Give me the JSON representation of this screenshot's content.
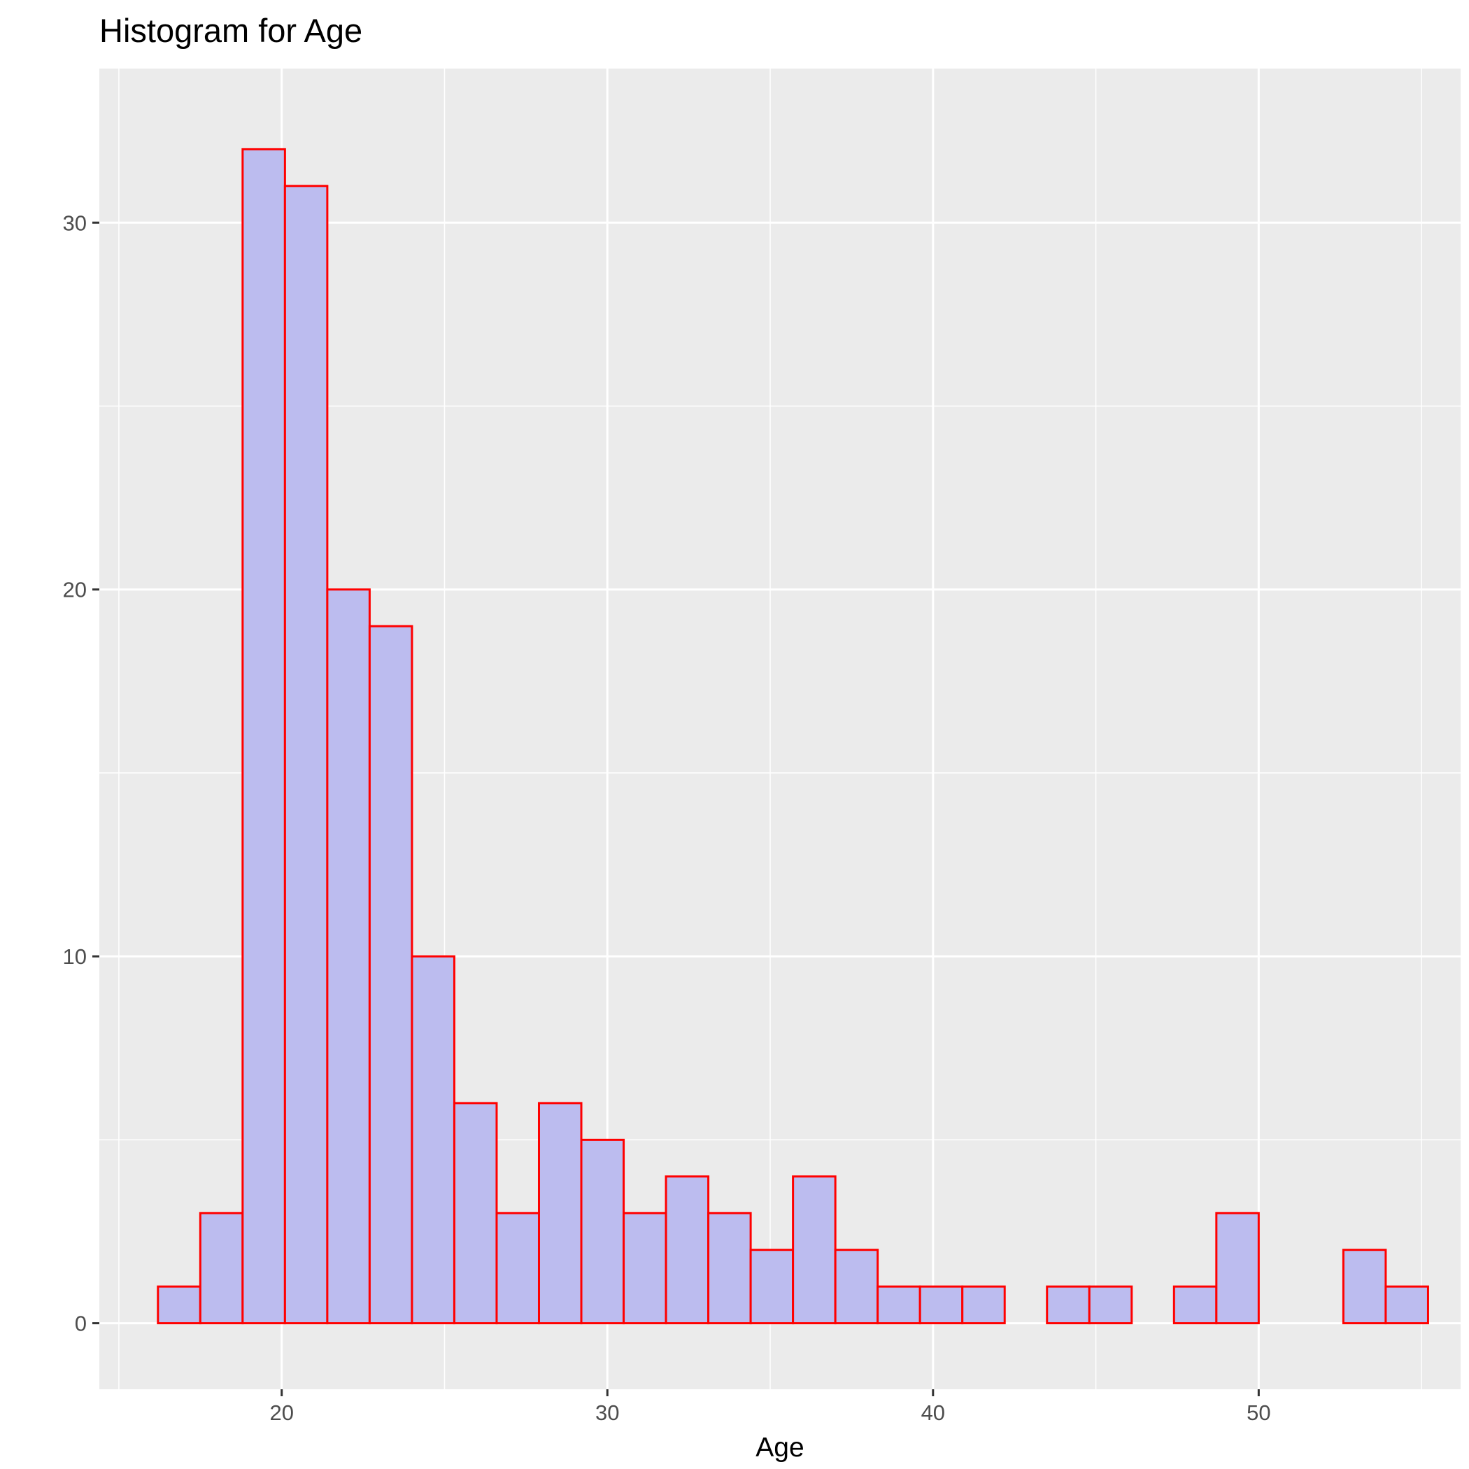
{
  "chart_data": {
    "type": "bar",
    "subtype": "histogram",
    "title": "Histogram for Age",
    "xlabel": "Age",
    "ylabel": "",
    "xlim": [
      14.4,
      56.2
    ],
    "ylim": [
      -1.8,
      34.2
    ],
    "xticks": [
      20,
      30,
      40,
      50
    ],
    "yticks": [
      0,
      10,
      20,
      30
    ],
    "xminor": [
      15,
      25,
      35,
      45,
      55
    ],
    "yminor": [
      5,
      15,
      25
    ],
    "bin_start": 16.2,
    "bin_width": 1.3,
    "counts": [
      1,
      3,
      32,
      31,
      20,
      19,
      10,
      6,
      3,
      6,
      5,
      3,
      4,
      3,
      2,
      4,
      2,
      1,
      1,
      1,
      0,
      1,
      1,
      0,
      1,
      3,
      0,
      0,
      2,
      1
    ],
    "fill_color": "#bcbcef",
    "outline_color": "#ff0000",
    "panel_color": "#ebebeb",
    "grid": true,
    "legend": "none"
  }
}
